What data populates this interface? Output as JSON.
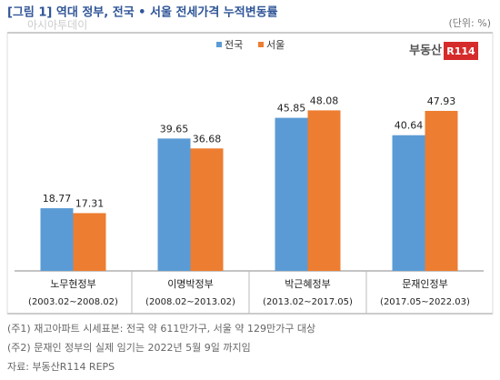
{
  "chart_data": {
    "type": "bar",
    "title": "[그림 1] 역대 정부, 전국 • 서울 전세가격 누적변동률",
    "unit": "(단위: %)",
    "watermark": "아시아투데이",
    "logo": {
      "text": "부동산",
      "badge": "R114"
    },
    "categories": [
      "노무현정부",
      "이명박정부",
      "박근혜정부",
      "문재인정부"
    ],
    "periods": [
      "(2003.02~2008.02)",
      "(2008.02~2013.02)",
      "(2013.02~2017.05)",
      "(2017.05~2022.03)"
    ],
    "series": [
      {
        "name": "전국",
        "color": "#5b9bd5",
        "values": [
          18.77,
          39.65,
          45.85,
          40.64
        ]
      },
      {
        "name": "서울",
        "color": "#ed7d31",
        "values": [
          17.31,
          36.68,
          48.08,
          47.93
        ]
      }
    ],
    "ylim": [
      0,
      55
    ],
    "notes": [
      "(주1) 재고아파트 시세표본: 전국 약 611만가구, 서울 약 129만가구 대상",
      "(주2) 문재인 정부의 실제 임기는 2022년 5월 9일 까지임",
      "자료: 부동산R114 REPS"
    ]
  }
}
